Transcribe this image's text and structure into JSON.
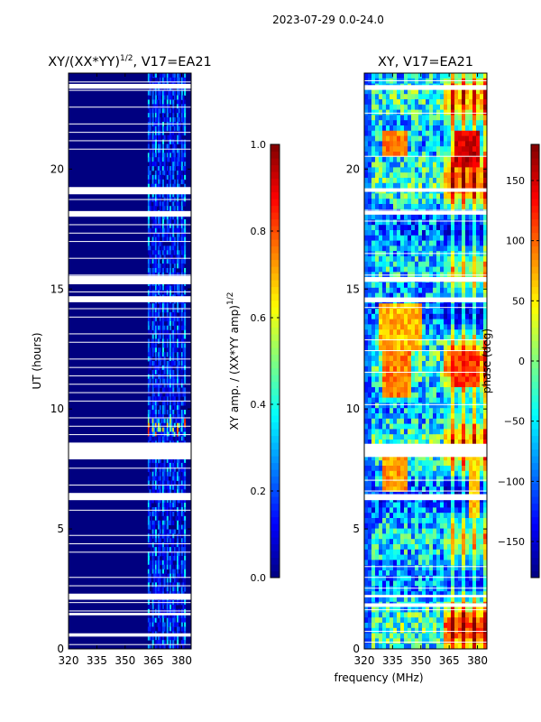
{
  "figure": {
    "suptitle": "2023-07-29 0.0-24.0",
    "shared_xlabel": "frequency (MHz)"
  },
  "chart_data": [
    {
      "type": "heatmap",
      "title_main": "XY/(XX*YY)",
      "title_exp": "1/2",
      "title_suffix": ", V17=EA21",
      "xlabel": "",
      "ylabel": "UT (hours)",
      "xlim": [
        320,
        385
      ],
      "ylim": [
        0,
        24
      ],
      "xticks": [
        320,
        335,
        350,
        365,
        380
      ],
      "yticks": [
        0,
        5,
        10,
        15,
        20
      ],
      "colormap": "jet",
      "colorbar": {
        "label_main": "XY amp. / (XX*YY amp)",
        "label_exp": "1/2",
        "range": [
          0.0,
          1.0
        ],
        "ticks": [
          0.0,
          0.2,
          0.4,
          0.6,
          0.8,
          1.0
        ],
        "tick_labels": [
          "0.0",
          "0.2",
          "0.4",
          "0.6",
          "0.8",
          "1.0"
        ]
      },
      "features": {
        "background_level": 0.0,
        "active_band_mhz": [
          362,
          382
        ],
        "active_band_level": 0.3,
        "strong_hours": [
          [
            8.9,
            9.6
          ]
        ],
        "strong_level": 0.65,
        "gap_hours": [
          [
            0.55,
            0.65
          ],
          [
            1.4,
            1.5
          ],
          [
            2.05,
            2.3
          ],
          [
            6.2,
            6.5
          ],
          [
            7.9,
            8.6
          ],
          [
            14.45,
            14.7
          ],
          [
            15.2,
            15.55
          ],
          [
            18.05,
            18.25
          ],
          [
            18.95,
            19.25
          ],
          [
            23.35,
            23.55
          ]
        ],
        "thin_gap_every_hours": 0.35
      }
    },
    {
      "type": "heatmap",
      "title_main": "XY, V17=EA21",
      "xlabel": "",
      "ylabel": "",
      "xlim": [
        320,
        385
      ],
      "ylim": [
        0,
        24
      ],
      "xticks": [
        320,
        335,
        350,
        365,
        380
      ],
      "yticks": [
        0,
        5,
        10,
        15,
        20
      ],
      "colormap": "jet",
      "colorbar": {
        "label_main": "phase (deg)",
        "range": [
          -180,
          180
        ],
        "ticks": [
          -150,
          -100,
          -50,
          0,
          50,
          100,
          150
        ],
        "tick_labels": [
          "−150",
          "−100",
          "−50",
          "0",
          "50",
          "100",
          "150"
        ]
      },
      "features": {
        "noise_band_mhz": [
          323,
          362
        ],
        "warm_blobs": [
          {
            "mhz": [
              328,
              350
            ],
            "hours": [
              12.5,
              14.4
            ],
            "deg": 70
          },
          {
            "mhz": [
              330,
              345
            ],
            "hours": [
              10.5,
              12.5
            ],
            "deg": 90
          },
          {
            "mhz": [
              330,
              343
            ],
            "hours": [
              6.5,
              8.5
            ],
            "deg": 80
          },
          {
            "mhz": [
              330,
              342
            ],
            "hours": [
              20.5,
              21.5
            ],
            "deg": 90
          },
          {
            "mhz": [
              365,
              382
            ],
            "hours": [
              11.0,
              12.5
            ],
            "deg": 120
          },
          {
            "mhz": [
              367,
              381
            ],
            "hours": [
              20.0,
              21.5
            ],
            "deg": 150
          },
          {
            "mhz": [
              375,
              382
            ],
            "hours": [
              5.5,
              8.0
            ],
            "deg": 60
          }
        ],
        "gap_hours": [
          [
            1.75,
            1.9
          ],
          [
            2.15,
            2.25
          ],
          [
            6.2,
            6.45
          ],
          [
            8.0,
            8.55
          ],
          [
            14.45,
            14.65
          ],
          [
            15.3,
            15.5
          ],
          [
            18.1,
            18.25
          ],
          [
            19.05,
            19.2
          ],
          [
            23.3,
            23.5
          ]
        ]
      }
    }
  ]
}
